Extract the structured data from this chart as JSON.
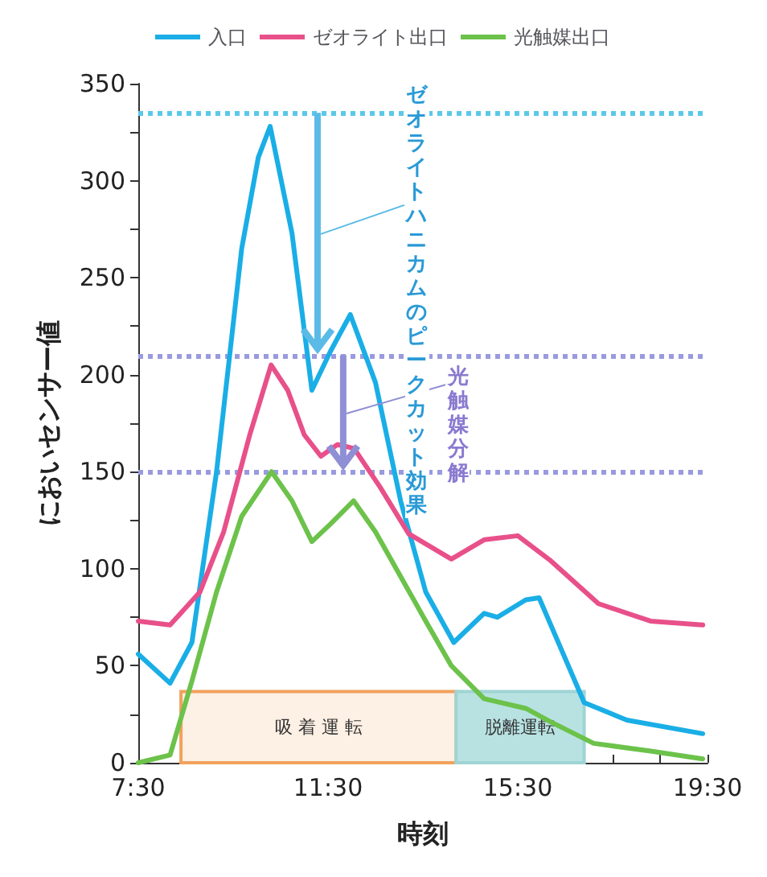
{
  "chart_data": {
    "type": "line",
    "xlabel": "時刻",
    "ylabel": "においセンサー値",
    "xlim": [
      7.5,
      19.5
    ],
    "xticks": [
      {
        "value": 7.5,
        "label": "7:30"
      },
      {
        "value": 8.5,
        "label": null
      },
      {
        "value": 9.5,
        "label": null
      },
      {
        "value": 10.5,
        "label": null
      },
      {
        "value": 11.5,
        "label": "11:30"
      },
      {
        "value": 12.5,
        "label": null
      },
      {
        "value": 13.5,
        "label": null
      },
      {
        "value": 14.5,
        "label": null
      },
      {
        "value": 15.5,
        "label": "15:30"
      },
      {
        "value": 16.5,
        "label": null
      },
      {
        "value": 17.5,
        "label": null
      },
      {
        "value": 18.5,
        "label": null
      },
      {
        "value": 19.5,
        "label": "19:30"
      }
    ],
    "ylim": [
      0,
      350
    ],
    "yticks": [
      0,
      {
        "value": 25,
        "label": null
      },
      50,
      {
        "value": 75,
        "label": null
      },
      100,
      {
        "value": 125,
        "label": null
      },
      150,
      {
        "value": 175,
        "label": null
      },
      200,
      {
        "value": 225,
        "label": null
      },
      250,
      {
        "value": 275,
        "label": null
      },
      300,
      {
        "value": 325,
        "label": null
      },
      350
    ],
    "grid": false,
    "legend": "top",
    "marker": "none",
    "line_style": "solid",
    "series": [
      {
        "name": "入口",
        "color": "#1aaee6",
        "x": [
          7.5,
          8.17,
          8.63,
          9.15,
          9.68,
          10.03,
          10.28,
          10.74,
          11.16,
          11.55,
          11.97,
          12.5,
          13.03,
          13.56,
          14.15,
          14.79,
          15.07,
          15.67,
          15.95,
          16.9,
          17.8,
          19.4
        ],
        "values": [
          56,
          41,
          62,
          150,
          265,
          312,
          328,
          273,
          192,
          212,
          231,
          196,
          135,
          88,
          62,
          77,
          75,
          84,
          85,
          31,
          22,
          15
        ]
      },
      {
        "name": "ゼオライト出口",
        "color": "#e8508a",
        "x": [
          7.5,
          8.17,
          8.8,
          9.3,
          9.85,
          10.3,
          10.65,
          11.0,
          11.35,
          11.7,
          12.05,
          12.6,
          13.2,
          14.1,
          14.8,
          15.5,
          16.2,
          17.2,
          18.3,
          19.4
        ],
        "values": [
          73,
          71,
          88,
          119,
          169,
          205,
          192,
          169,
          158,
          164,
          162,
          142,
          118,
          105,
          115,
          117,
          104,
          82,
          73,
          71
        ]
      },
      {
        "name": "光触媒出口",
        "color": "#6cc24a",
        "x": [
          7.5,
          8.17,
          8.63,
          9.15,
          9.68,
          10.31,
          10.74,
          11.16,
          11.55,
          12.04,
          12.5,
          13.03,
          13.56,
          14.1,
          14.79,
          15.67,
          16.2,
          17.1,
          18.3,
          19.4
        ],
        "values": [
          0,
          4,
          42,
          88,
          127,
          150,
          135,
          114,
          123,
          135,
          119,
          96,
          73,
          50,
          33,
          28,
          21,
          10,
          6,
          2
        ]
      }
    ],
    "ref_lines": [
      {
        "axis": "y",
        "value": 335,
        "color": "#5bc8e8",
        "line_style": "dotted"
      },
      {
        "axis": "y",
        "value": 210,
        "color": "#9a9ae0",
        "line_style": "dotted"
      },
      {
        "axis": "y",
        "value": 150,
        "color": "#9a9ae0",
        "line_style": "dotted"
      }
    ],
    "bands": [
      {
        "axis": "x",
        "from": 8.4,
        "to": 14.2,
        "label": "吸 着 運 転",
        "color": "#fdf0e4"
      },
      {
        "axis": "x",
        "from": 14.2,
        "to": 16.9,
        "label": "脱離運転",
        "color": "#b8e2e2"
      }
    ],
    "annotations": [
      "ゼオライトハニカムのピークカット効果",
      "光触媒分解"
    ]
  }
}
